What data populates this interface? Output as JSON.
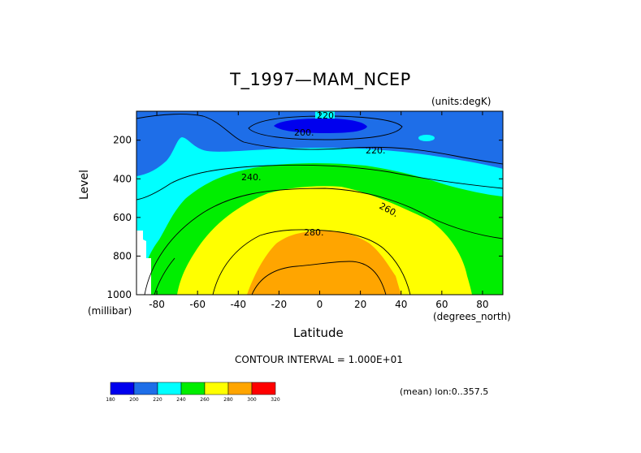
{
  "chart_data": {
    "type": "heatmap",
    "title": "T_1997—MAM_NCEP",
    "units_label": "(units:degK)",
    "xlabel": "Latitude",
    "x_units": "(degrees_north)",
    "ylabel": "Level",
    "y_units": "(millibar)",
    "xlim": [
      -90,
      90
    ],
    "ylim": [
      1000,
      50
    ],
    "x_ticks": [
      -80,
      -60,
      -40,
      -20,
      0,
      20,
      40,
      60,
      80
    ],
    "y_ticks": [
      200,
      400,
      600,
      800,
      1000
    ],
    "contour_interval_text": "CONTOUR INTERVAL = 1.000E+01",
    "mean_text": "(mean) lon:0..357.5",
    "contour_labels": [
      "220",
      "200.",
      "220.",
      "240.",
      "260.",
      "280."
    ],
    "colorbar": {
      "levels": [
        "180",
        "200",
        "220",
        "240",
        "260",
        "280",
        "300",
        "320"
      ],
      "colors": [
        "#0000ee",
        "#1e6ee8",
        "#00ffff",
        "#00ee00",
        "#ffff00",
        "#ffa500",
        "#ff0000"
      ]
    }
  }
}
